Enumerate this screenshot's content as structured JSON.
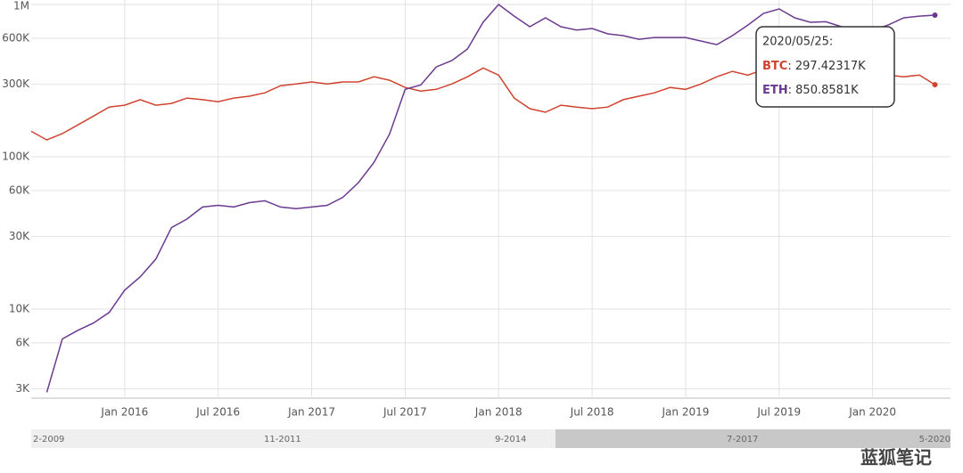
{
  "chart_data": {
    "type": "line",
    "x": [
      "2015-07",
      "2015-08",
      "2015-09",
      "2015-10",
      "2015-11",
      "2015-12",
      "2016-01",
      "2016-02",
      "2016-03",
      "2016-04",
      "2016-05",
      "2016-06",
      "2016-07",
      "2016-08",
      "2016-09",
      "2016-10",
      "2016-11",
      "2016-12",
      "2017-01",
      "2017-02",
      "2017-03",
      "2017-04",
      "2017-05",
      "2017-06",
      "2017-07",
      "2017-08",
      "2017-09",
      "2017-10",
      "2017-11",
      "2017-12",
      "2018-01",
      "2018-02",
      "2018-03",
      "2018-04",
      "2018-05",
      "2018-06",
      "2018-07",
      "2018-08",
      "2018-09",
      "2018-10",
      "2018-11",
      "2018-12",
      "2019-01",
      "2019-02",
      "2019-03",
      "2019-04",
      "2019-05",
      "2019-06",
      "2019-07",
      "2019-08",
      "2019-09",
      "2019-10",
      "2019-11",
      "2019-12",
      "2020-01",
      "2020-02",
      "2020-03",
      "2020-04",
      "2020-05"
    ],
    "series": [
      {
        "name": "BTC",
        "color": "#d0432f",
        "values": [
          147000,
          129000,
          142000,
          162000,
          185000,
          212000,
          218000,
          237000,
          218000,
          224000,
          243000,
          237000,
          230000,
          243000,
          250000,
          263000,
          293000,
          301000,
          310000,
          301000,
          310000,
          310000,
          335000,
          318000,
          285000,
          270000,
          277000,
          301000,
          335000,
          383000,
          344000,
          243000,
          207000,
          196000,
          218000,
          212000,
          207000,
          212000,
          237000,
          250000,
          263000,
          285000,
          277000,
          301000,
          335000,
          364000,
          344000,
          374000,
          405000,
          383000,
          364000,
          344000,
          344000,
          335000,
          327000,
          344000,
          335000,
          344000,
          297423.17
        ]
      },
      {
        "name": "ETH",
        "color": "#6b3a8f",
        "values": [
          null,
          2840,
          6370,
          7260,
          8100,
          9500,
          13300,
          16300,
          21300,
          34300,
          39000,
          46800,
          48000,
          46800,
          50000,
          51400,
          46800,
          45600,
          46800,
          48000,
          54200,
          67700,
          91900,
          141000,
          277000,
          296000,
          389000,
          428000,
          510000,
          764000,
          1000000,
          839000,
          714000,
          817000,
          714000,
          680000,
          695000,
          641000,
          624000,
          591000,
          607000,
          607000,
          607000,
          575000,
          545000,
          624000,
          733000,
          874000,
          935000,
          817000,
          764000,
          770000,
          714000,
          641000,
          676000,
          733000,
          817000,
          839000,
          850858.1
        ]
      }
    ],
    "xlim": [
      "2015-07",
      "2020-06"
    ],
    "xticks": [
      {
        "value": "2016-01",
        "label": "Jan 2016"
      },
      {
        "value": "2016-07",
        "label": "Jul 2016"
      },
      {
        "value": "2017-01",
        "label": "Jan 2017"
      },
      {
        "value": "2017-07",
        "label": "Jul 2017"
      },
      {
        "value": "2018-01",
        "label": "Jan 2018"
      },
      {
        "value": "2018-07",
        "label": "Jul 2018"
      },
      {
        "value": "2019-01",
        "label": "Jan 2019"
      },
      {
        "value": "2019-07",
        "label": "Jul 2019"
      },
      {
        "value": "2020-01",
        "label": "Jan 2020"
      }
    ],
    "ylim": [
      2600,
      1070000
    ],
    "log_scale": true,
    "grid": true,
    "yticks": [
      {
        "value": 3000,
        "label": "3K"
      },
      {
        "value": 6000,
        "label": "6K"
      },
      {
        "value": 10000,
        "label": "10K"
      },
      {
        "value": 30000,
        "label": "30K"
      },
      {
        "value": 60000,
        "label": "60K"
      },
      {
        "value": 100000,
        "label": "100K"
      },
      {
        "value": 300000,
        "label": "300K"
      },
      {
        "value": 600000,
        "label": "600K"
      },
      {
        "value": 1000000,
        "label": "1M"
      }
    ],
    "tooltip": {
      "date": "2020/05/25:",
      "rows": [
        {
          "name": "BTC",
          "text": ": 297.42317K"
        },
        {
          "name": "ETH",
          "text": ": 850.8581K"
        }
      ]
    },
    "navigator_labels": [
      "2-2009",
      "11-2011",
      "9-2014",
      "7-2017",
      "5-2020"
    ],
    "watermark": "蓝狐笔记"
  }
}
